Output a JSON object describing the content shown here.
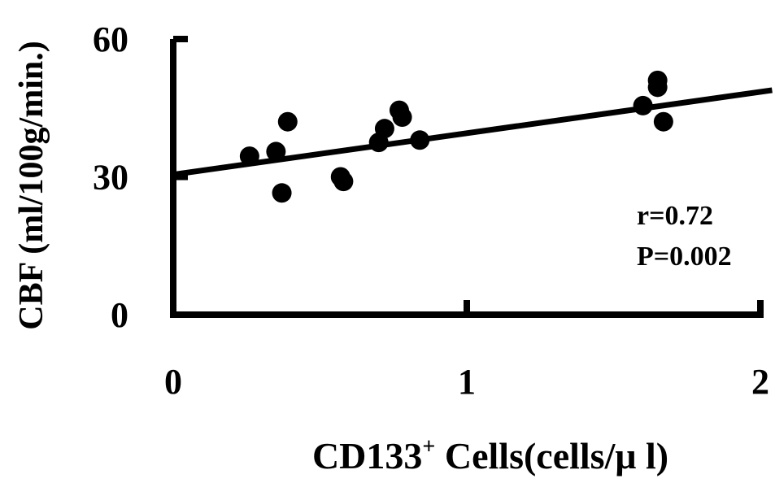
{
  "chart_data": {
    "type": "scatter",
    "title": "",
    "xlabel": "CD133",
    "xlabel_sup": "+",
    "xlabel_rest": " Cells(cells/μ l)",
    "ylabel": "CBF (ml/100g/min.)",
    "xlim": [
      0,
      2
    ],
    "ylim": [
      0,
      60
    ],
    "x_ticks": [
      0,
      1,
      2
    ],
    "x_tick_labels": [
      "0",
      "1",
      "2"
    ],
    "y_ticks": [
      0,
      30,
      60
    ],
    "y_tick_labels": [
      "0",
      "30",
      "60"
    ],
    "grid": false,
    "legend": "none",
    "series": [
      {
        "x": [
          0.26,
          0.35,
          0.37,
          0.39,
          0.57,
          0.58,
          0.7,
          0.72,
          0.77,
          0.78,
          0.84,
          1.6,
          1.65,
          1.65,
          1.67
        ],
        "y": [
          34.5,
          35.5,
          26.5,
          42.0,
          30.0,
          29.0,
          37.5,
          40.5,
          44.5,
          43.0,
          38.0,
          45.5,
          51.0,
          49.5,
          42.0
        ]
      }
    ],
    "regression": {
      "intercept": 30.5,
      "slope": 9.0
    },
    "annotations": [
      "r=0.72",
      "P=0.002"
    ],
    "colors": {
      "ink": "#000000",
      "background": "#ffffff"
    }
  }
}
